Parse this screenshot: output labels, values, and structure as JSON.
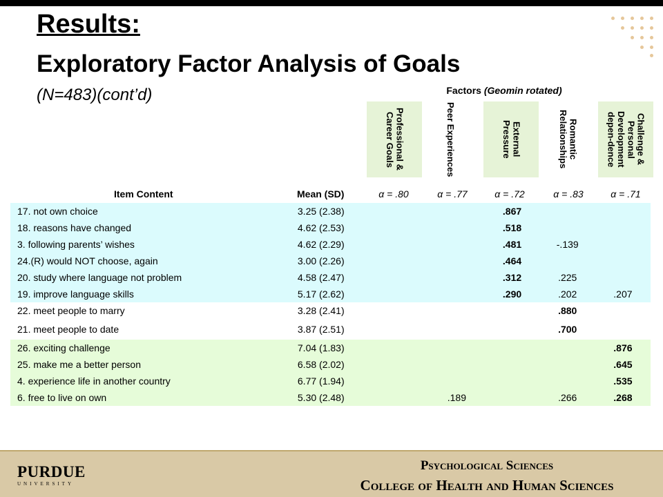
{
  "slide": {
    "title": "Results:",
    "subtitle": "Exploratory Factor Analysis of Goals",
    "sample_note": "(N=483)(cont’d)"
  },
  "table": {
    "factors_label": "Factors",
    "factors_rotation": "(Geomin rotated)",
    "item_header": "Item Content",
    "mean_header": "Mean (SD)",
    "factors": [
      {
        "name": "Professional & Career Goals",
        "alpha": "α = .80"
      },
      {
        "name": "Peer Experiences",
        "alpha": "α = .77"
      },
      {
        "name": "External Pressure",
        "alpha": "α = .72"
      },
      {
        "name": "Romantic Relationships",
        "alpha": "α = .83"
      },
      {
        "name": "Challenge & Personal Development depen-dence",
        "alpha": "α = .71"
      }
    ],
    "rows": [
      {
        "item": "17. not own choice",
        "mean": "3.25 (2.38)",
        "loadings": [
          "",
          "",
          ".867",
          "",
          ""
        ]
      },
      {
        "item": "18. reasons have changed",
        "mean": "4.62 (2.53)",
        "loadings": [
          "",
          "",
          ".518",
          "",
          ""
        ]
      },
      {
        "item": "3. following parents’ wishes",
        "mean": "4.62 (2.29)",
        "loadings": [
          "",
          "",
          ".481",
          "-.139",
          ""
        ]
      },
      {
        "item": "24.(R) would NOT choose, again",
        "mean": "3.00 (2.26)",
        "loadings": [
          "",
          "",
          ".464",
          "",
          ""
        ]
      },
      {
        "item": "20. study where language not problem",
        "mean": "4.58 (2.47)",
        "loadings": [
          "",
          "",
          ".312",
          ".225",
          ""
        ]
      },
      {
        "item": "19. improve language skills",
        "mean": "5.17 (2.62)",
        "loadings": [
          "",
          "",
          ".290",
          ".202",
          ".207"
        ]
      },
      {
        "item": "22. meet people to marry",
        "mean": "3.28 (2.41)",
        "loadings": [
          "",
          "",
          "",
          ".880",
          ""
        ]
      },
      {
        "item": "21. meet people to date",
        "mean": "3.87 (2.51)",
        "loadings": [
          "",
          "",
          "",
          ".700",
          ""
        ]
      },
      {
        "item": "26. exciting challenge",
        "mean": "7.04 (1.83)",
        "loadings": [
          "",
          "",
          "",
          "",
          ".876"
        ]
      },
      {
        "item": "25. make me a better person",
        "mean": "6.58 (2.02)",
        "loadings": [
          "",
          "",
          "",
          "",
          ".645"
        ]
      },
      {
        "item": "4. experience life in another country",
        "mean": "6.77 (1.94)",
        "loadings": [
          "",
          "",
          "",
          "",
          ".535"
        ]
      },
      {
        "item": "6. free to live on own",
        "mean": "5.30 (2.48)",
        "loadings": [
          "",
          ".189",
          "",
          ".266",
          ".268"
        ]
      }
    ]
  },
  "footer": {
    "logo_word": "PURDUE",
    "logo_sub": "UNIVERSITY",
    "line1": "Psychological Sciences",
    "line2": "College of Health and Human Sciences"
  },
  "colors": {
    "blue_band": "#dbfbfd",
    "green_band": "#e6fcd9",
    "header_green": "#e6f3d7",
    "footer_bg": "#d9c9a6",
    "dot_accent": "#e6c79a"
  }
}
